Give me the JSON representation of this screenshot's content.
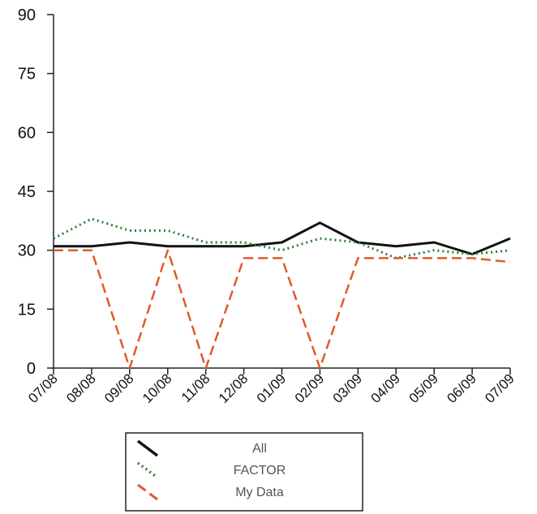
{
  "chart_data": {
    "type": "line",
    "categories": [
      "07/08",
      "08/08",
      "09/08",
      "10/08",
      "11/08",
      "12/08",
      "01/09",
      "02/09",
      "03/09",
      "04/09",
      "05/09",
      "06/09",
      "07/09"
    ],
    "ylim": [
      0,
      90
    ],
    "yticks": [
      0,
      15,
      30,
      45,
      60,
      75,
      90
    ],
    "grid": false,
    "legend_position": "bottom",
    "series": [
      {
        "name": "All",
        "color": "#111111",
        "style": "solid",
        "values": [
          31,
          31,
          32,
          31,
          31,
          31,
          32,
          37,
          32,
          31,
          32,
          29,
          33
        ]
      },
      {
        "name": "FACTOR",
        "color": "#2e7d32",
        "style": "dotted",
        "values": [
          33,
          38,
          35,
          35,
          32,
          32,
          30,
          33,
          32,
          28,
          30,
          29,
          30
        ]
      },
      {
        "name": "My Data",
        "color": "#e05a2b",
        "style": "dashed",
        "values": [
          30,
          30,
          0,
          30,
          0,
          28,
          28,
          0,
          28,
          28,
          28,
          28,
          27
        ]
      }
    ]
  }
}
